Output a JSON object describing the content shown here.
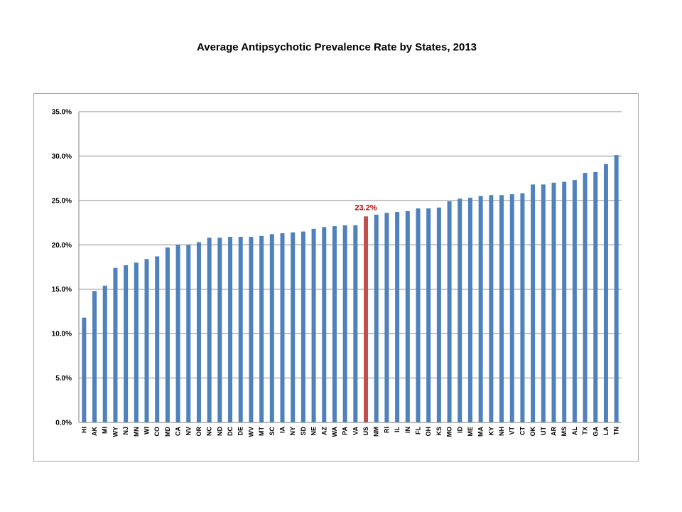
{
  "chart_data": {
    "type": "bar",
    "title": "Average Antipsychotic Prevalence Rate by States, 2013",
    "xlabel": "",
    "ylabel": "",
    "ylim": [
      0,
      35
    ],
    "ytick_labels": [
      "0.0%",
      "5.0%",
      "10.0%",
      "15.0%",
      "20.0%",
      "25.0%",
      "30.0%",
      "35.0%"
    ],
    "grid": true,
    "legend": "none",
    "categories": [
      "HI",
      "AK",
      "MI",
      "WY",
      "NJ",
      "MN",
      "WI",
      "CO",
      "MD",
      "CA",
      "NV",
      "OR",
      "NC",
      "ND",
      "DC",
      "DE",
      "WV",
      "MT",
      "SC",
      "IA",
      "NY",
      "SD",
      "NE",
      "AZ",
      "WA",
      "PA",
      "VA",
      "US",
      "NM",
      "RI",
      "IL",
      "IN",
      "FL",
      "OH",
      "KS",
      "MO",
      "ID",
      "ME",
      "MA",
      "KY",
      "NH",
      "VT",
      "CT",
      "OK",
      "UT",
      "AR",
      "MS",
      "AL",
      "TX",
      "GA",
      "LA",
      "TN"
    ],
    "values": [
      11.8,
      14.8,
      15.4,
      17.4,
      17.7,
      18.0,
      18.4,
      18.7,
      19.7,
      20.0,
      20.0,
      20.3,
      20.8,
      20.8,
      20.9,
      20.9,
      20.9,
      21.0,
      21.2,
      21.3,
      21.4,
      21.5,
      21.8,
      22.0,
      22.1,
      22.2,
      22.2,
      23.2,
      23.4,
      23.6,
      23.7,
      23.8,
      24.1,
      24.1,
      24.2,
      24.9,
      25.2,
      25.3,
      25.5,
      25.6,
      25.6,
      25.7,
      25.8,
      26.8,
      26.8,
      27.0,
      27.1,
      27.3,
      28.1,
      28.2,
      29.1,
      30.1
    ],
    "highlight": {
      "category": "US",
      "label": "23.2%"
    },
    "colors": {
      "bar": "#4f81bd",
      "highlight_bar": "#c0504d",
      "highlight_label": "#c00000",
      "grid": "#8c8c8c"
    }
  }
}
